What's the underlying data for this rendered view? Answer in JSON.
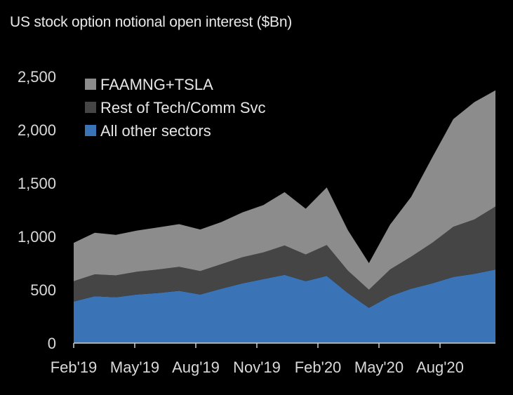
{
  "chart_data": {
    "type": "area",
    "stacked": true,
    "title": "US stock option notional open interest ($Bn)",
    "xlabel": "",
    "ylabel": "",
    "ylim": [
      0,
      2500
    ],
    "yticks": [
      0,
      500,
      1000,
      1500,
      2000,
      2500
    ],
    "ytick_labels": [
      "0",
      "500",
      "1,000",
      "1,500",
      "2,000",
      "2,500"
    ],
    "xtick_labels": [
      "Feb'19",
      "May'19",
      "Aug'19",
      "Nov'19",
      "Feb'20",
      "May'20",
      "Aug'20"
    ],
    "legend_position": "top-left",
    "x": [
      "Feb'19",
      "Mar'19",
      "Apr'19",
      "May'19",
      "Jun'19",
      "Jul'19",
      "Aug'19",
      "Sep'19",
      "Oct'19",
      "Nov'19",
      "Dec'19",
      "Jan'20",
      "Feb'20",
      "Mar'20",
      "Apr'20",
      "May'20",
      "Jun'20",
      "Jul'20",
      "Aug'20",
      "Sep'20",
      "Oct'20"
    ],
    "series": [
      {
        "name": "All other sectors",
        "color": "#3a73b6",
        "values": [
          390,
          440,
          430,
          455,
          470,
          490,
          455,
          510,
          560,
          600,
          640,
          580,
          630,
          470,
          330,
          440,
          510,
          560,
          620,
          650,
          690
        ]
      },
      {
        "name": "Rest of Tech/Comm Svc",
        "color": "#454545",
        "values": [
          190,
          205,
          205,
          215,
          220,
          225,
          220,
          230,
          245,
          250,
          275,
          250,
          290,
          210,
          170,
          250,
          300,
          380,
          470,
          510,
          590
        ]
      },
      {
        "name": "FAAMNG+TSLA",
        "color": "#8c8c8c",
        "values": [
          360,
          390,
          380,
          385,
          395,
          400,
          390,
          395,
          420,
          445,
          500,
          430,
          540,
          380,
          250,
          420,
          560,
          800,
          1010,
          1100,
          1090
        ]
      }
    ]
  }
}
